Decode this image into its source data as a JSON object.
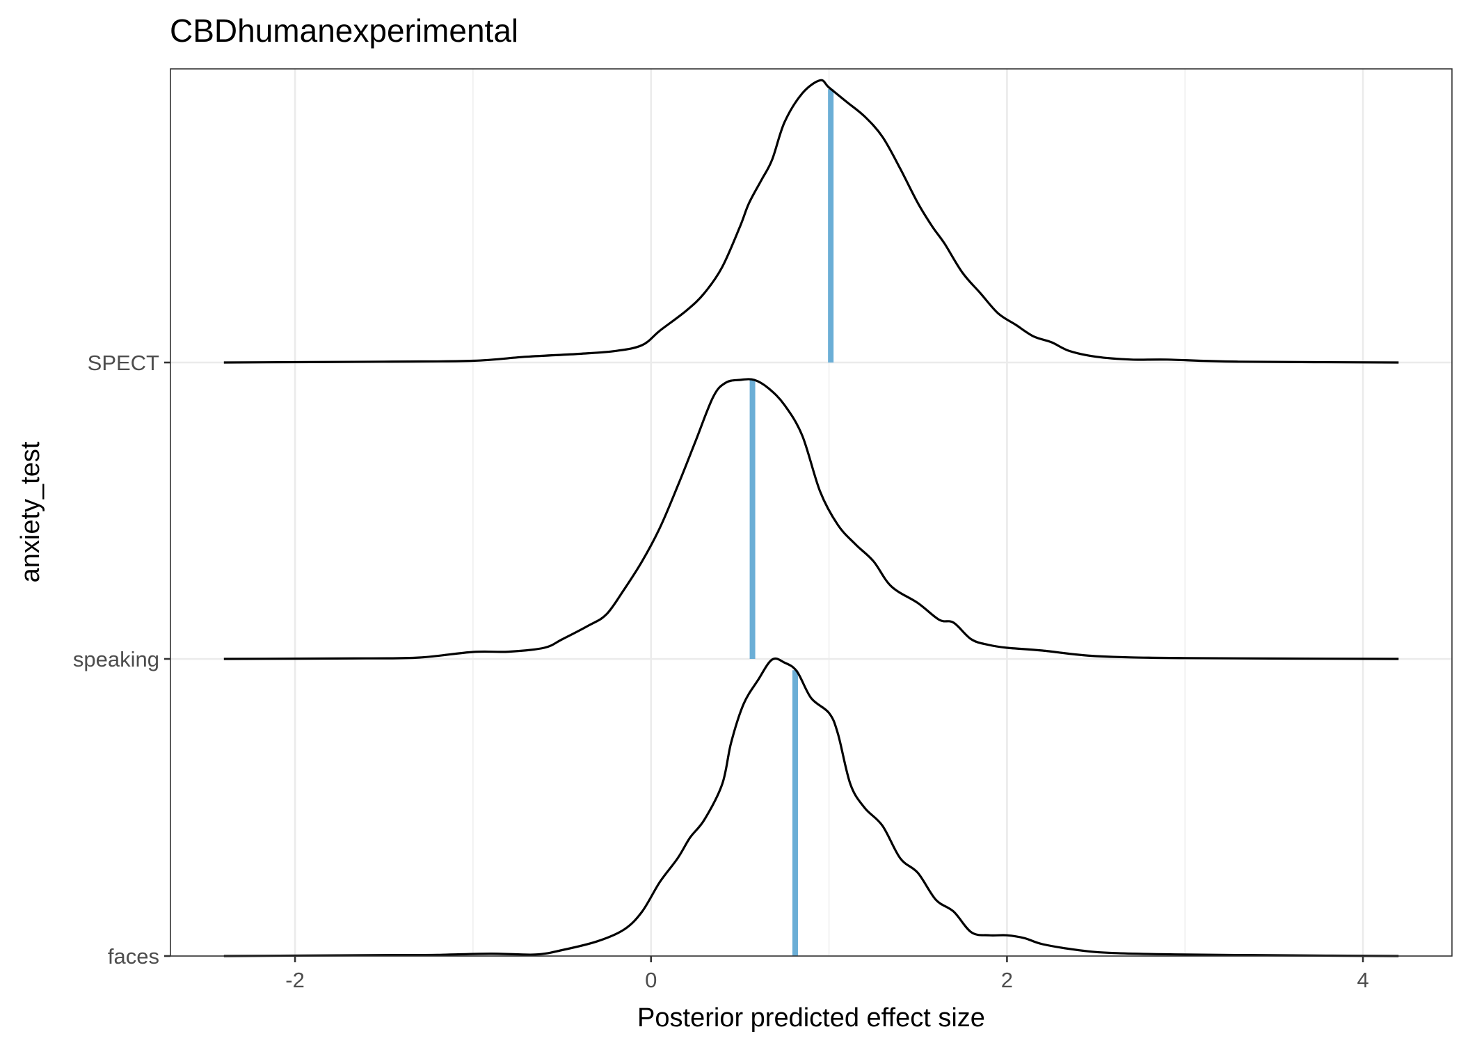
{
  "chart_data": {
    "type": "ridgeline density",
    "title": "CBDhumanexperimental",
    "xlabel": "Posterior predicted effect size",
    "ylabel": "anxiety_test",
    "xlim": [
      -2.7,
      4.5
    ],
    "x_range": [
      -2.4,
      4.2
    ],
    "xticks": [
      -2,
      0,
      2,
      4
    ],
    "xtick_labels": [
      "-2",
      "0",
      "2",
      "4"
    ],
    "categories": [
      "faces",
      "speaking",
      "SPECT"
    ],
    "median_color": "#6baed6",
    "line_color": "#000000",
    "grid": true,
    "series": [
      {
        "name": "faces",
        "median": 0.81,
        "density": [
          [
            -2.4,
            0.0
          ],
          [
            -1.5,
            0.003
          ],
          [
            -1.2,
            0.004
          ],
          [
            -0.9,
            0.008
          ],
          [
            -0.65,
            0.005
          ],
          [
            -0.5,
            0.02
          ],
          [
            -0.3,
            0.05
          ],
          [
            -0.15,
            0.09
          ],
          [
            -0.05,
            0.15
          ],
          [
            0.05,
            0.25
          ],
          [
            0.15,
            0.33
          ],
          [
            0.22,
            0.4
          ],
          [
            0.3,
            0.46
          ],
          [
            0.4,
            0.58
          ],
          [
            0.45,
            0.72
          ],
          [
            0.52,
            0.85
          ],
          [
            0.6,
            0.93
          ],
          [
            0.68,
            1.0
          ],
          [
            0.75,
            0.99
          ],
          [
            0.82,
            0.96
          ],
          [
            0.9,
            0.87
          ],
          [
            1.0,
            0.82
          ],
          [
            1.05,
            0.75
          ],
          [
            1.12,
            0.58
          ],
          [
            1.2,
            0.5
          ],
          [
            1.3,
            0.44
          ],
          [
            1.4,
            0.33
          ],
          [
            1.5,
            0.28
          ],
          [
            1.6,
            0.19
          ],
          [
            1.7,
            0.15
          ],
          [
            1.8,
            0.08
          ],
          [
            1.9,
            0.07
          ],
          [
            2.0,
            0.07
          ],
          [
            2.1,
            0.06
          ],
          [
            2.2,
            0.04
          ],
          [
            2.4,
            0.02
          ],
          [
            2.6,
            0.01
          ],
          [
            3.0,
            0.005
          ],
          [
            3.6,
            0.002
          ],
          [
            4.2,
            0.0
          ]
        ]
      },
      {
        "name": "speaking",
        "median": 0.57,
        "density": [
          [
            -2.4,
            0.0
          ],
          [
            -1.6,
            0.002
          ],
          [
            -1.3,
            0.005
          ],
          [
            -1.0,
            0.025
          ],
          [
            -0.8,
            0.026
          ],
          [
            -0.6,
            0.04
          ],
          [
            -0.5,
            0.07
          ],
          [
            -0.35,
            0.12
          ],
          [
            -0.25,
            0.16
          ],
          [
            -0.15,
            0.25
          ],
          [
            -0.05,
            0.35
          ],
          [
            0.05,
            0.47
          ],
          [
            0.15,
            0.62
          ],
          [
            0.25,
            0.78
          ],
          [
            0.35,
            0.94
          ],
          [
            0.42,
            0.99
          ],
          [
            0.5,
            1.0
          ],
          [
            0.58,
            1.0
          ],
          [
            0.66,
            0.97
          ],
          [
            0.75,
            0.91
          ],
          [
            0.85,
            0.8
          ],
          [
            0.95,
            0.6
          ],
          [
            1.05,
            0.48
          ],
          [
            1.15,
            0.41
          ],
          [
            1.25,
            0.35
          ],
          [
            1.35,
            0.26
          ],
          [
            1.5,
            0.2
          ],
          [
            1.62,
            0.14
          ],
          [
            1.7,
            0.13
          ],
          [
            1.8,
            0.07
          ],
          [
            1.9,
            0.05
          ],
          [
            2.0,
            0.04
          ],
          [
            2.2,
            0.03
          ],
          [
            2.5,
            0.01
          ],
          [
            3.0,
            0.003
          ],
          [
            4.2,
            0.0
          ]
        ]
      },
      {
        "name": "SPECT",
        "median": 1.01,
        "density": [
          [
            -2.4,
            0.0
          ],
          [
            -1.5,
            0.003
          ],
          [
            -1.0,
            0.006
          ],
          [
            -0.7,
            0.02
          ],
          [
            -0.4,
            0.03
          ],
          [
            -0.2,
            0.04
          ],
          [
            -0.05,
            0.06
          ],
          [
            0.05,
            0.11
          ],
          [
            0.2,
            0.18
          ],
          [
            0.3,
            0.24
          ],
          [
            0.4,
            0.33
          ],
          [
            0.5,
            0.47
          ],
          [
            0.55,
            0.55
          ],
          [
            0.62,
            0.63
          ],
          [
            0.68,
            0.7
          ],
          [
            0.75,
            0.83
          ],
          [
            0.85,
            0.93
          ],
          [
            0.95,
            0.975
          ],
          [
            1.0,
            0.95
          ],
          [
            1.1,
            0.9
          ],
          [
            1.2,
            0.85
          ],
          [
            1.3,
            0.78
          ],
          [
            1.4,
            0.67
          ],
          [
            1.5,
            0.55
          ],
          [
            1.58,
            0.47
          ],
          [
            1.65,
            0.41
          ],
          [
            1.75,
            0.31
          ],
          [
            1.85,
            0.24
          ],
          [
            1.95,
            0.17
          ],
          [
            2.05,
            0.13
          ],
          [
            2.15,
            0.09
          ],
          [
            2.25,
            0.07
          ],
          [
            2.35,
            0.04
          ],
          [
            2.5,
            0.02
          ],
          [
            2.7,
            0.01
          ],
          [
            2.9,
            0.01
          ],
          [
            3.3,
            0.003
          ],
          [
            4.2,
            0.0
          ]
        ]
      }
    ]
  }
}
